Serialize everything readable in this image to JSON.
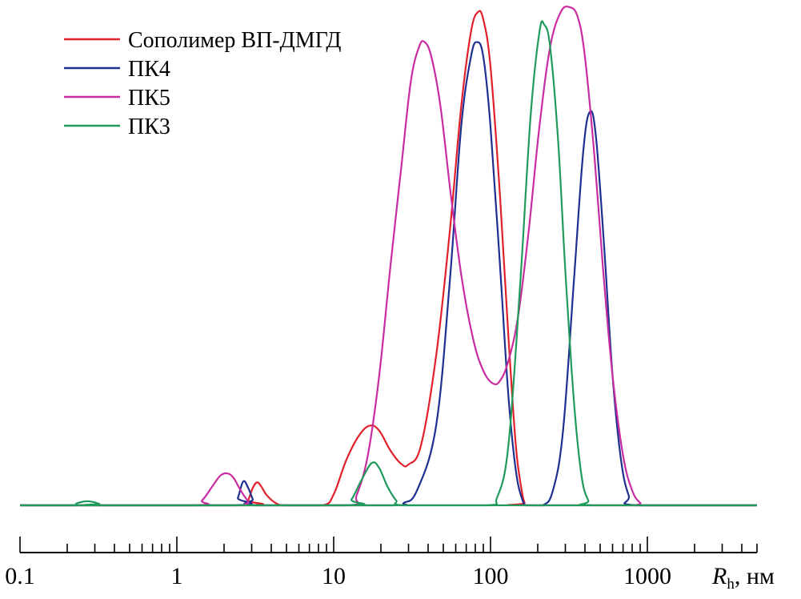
{
  "chart_data": {
    "type": "line",
    "title": "",
    "xlabel": {
      "symbol": "R",
      "subscript": "h",
      "unit": ", нм"
    },
    "ylabel": "",
    "x_scale": "log",
    "xlim": [
      0.1,
      5000
    ],
    "ylim": [
      0,
      1.0
    ],
    "tick_labels": [
      "0.1",
      "1",
      "10",
      "100",
      "1000"
    ],
    "tick_values": [
      0.1,
      1,
      10,
      100,
      1000
    ],
    "grid": false,
    "legend_position": "top-left",
    "series": [
      {
        "name": "Сополимер ВП-ДМГД",
        "color": "#e0202a",
        "points": [
          [
            0.1,
            0
          ],
          [
            2.7,
            0
          ],
          [
            2.85,
            0.01
          ],
          [
            3.05,
            0.035
          ],
          [
            3.25,
            0.046
          ],
          [
            3.45,
            0.038
          ],
          [
            3.75,
            0.02
          ],
          [
            4.3,
            0.004
          ],
          [
            5,
            0
          ],
          [
            8.5,
            0
          ],
          [
            10,
            0.022
          ],
          [
            12,
            0.09
          ],
          [
            14.5,
            0.14
          ],
          [
            17,
            0.16
          ],
          [
            19.5,
            0.15
          ],
          [
            23,
            0.11
          ],
          [
            27,
            0.083
          ],
          [
            30,
            0.082
          ],
          [
            36,
            0.12
          ],
          [
            45,
            0.3
          ],
          [
            55,
            0.55
          ],
          [
            65,
            0.8
          ],
          [
            75,
            0.95
          ],
          [
            83,
            0.99
          ],
          [
            90,
            0.975
          ],
          [
            100,
            0.88
          ],
          [
            115,
            0.62
          ],
          [
            130,
            0.34
          ],
          [
            145,
            0.12
          ],
          [
            158,
            0.03
          ],
          [
            165,
            0.005
          ],
          [
            170,
            0
          ],
          [
            5000,
            0
          ]
        ]
      },
      {
        "name": "ПК4",
        "color": "#1f2f8f",
        "points": [
          [
            0.1,
            0
          ],
          [
            2.3,
            0
          ],
          [
            2.45,
            0.015
          ],
          [
            2.65,
            0.048
          ],
          [
            2.85,
            0.035
          ],
          [
            3.05,
            0.012
          ],
          [
            3.2,
            0
          ],
          [
            24,
            0
          ],
          [
            28,
            0.005
          ],
          [
            34,
            0.03
          ],
          [
            45,
            0.16
          ],
          [
            55,
            0.45
          ],
          [
            65,
            0.76
          ],
          [
            75,
            0.9
          ],
          [
            82,
            0.93
          ],
          [
            90,
            0.9
          ],
          [
            100,
            0.76
          ],
          [
            115,
            0.48
          ],
          [
            130,
            0.22
          ],
          [
            145,
            0.07
          ],
          [
            160,
            0.01
          ],
          [
            170,
            0
          ],
          [
            215,
            0
          ],
          [
            250,
            0.03
          ],
          [
            290,
            0.15
          ],
          [
            340,
            0.45
          ],
          [
            390,
            0.71
          ],
          [
            430,
            0.79
          ],
          [
            470,
            0.74
          ],
          [
            530,
            0.52
          ],
          [
            600,
            0.26
          ],
          [
            680,
            0.09
          ],
          [
            760,
            0.02
          ],
          [
            850,
            0
          ],
          [
            5000,
            0
          ]
        ]
      },
      {
        "name": "ПК5",
        "color": "#c82ca0",
        "points": [
          [
            0.1,
            0
          ],
          [
            1.25,
            0
          ],
          [
            1.45,
            0.01
          ],
          [
            1.7,
            0.04
          ],
          [
            1.9,
            0.06
          ],
          [
            2.1,
            0.064
          ],
          [
            2.3,
            0.055
          ],
          [
            2.55,
            0.03
          ],
          [
            2.85,
            0.008
          ],
          [
            3.1,
            0
          ],
          [
            12.5,
            0
          ],
          [
            14,
            0.02
          ],
          [
            16.5,
            0.1
          ],
          [
            19.5,
            0.26
          ],
          [
            23,
            0.48
          ],
          [
            27,
            0.68
          ],
          [
            31,
            0.85
          ],
          [
            35,
            0.92
          ],
          [
            38,
            0.93
          ],
          [
            42,
            0.9
          ],
          [
            48,
            0.8
          ],
          [
            56,
            0.62
          ],
          [
            66,
            0.45
          ],
          [
            78,
            0.33
          ],
          [
            90,
            0.27
          ],
          [
            103,
            0.245
          ],
          [
            115,
            0.25
          ],
          [
            130,
            0.29
          ],
          [
            150,
            0.38
          ],
          [
            175,
            0.55
          ],
          [
            205,
            0.76
          ],
          [
            240,
            0.92
          ],
          [
            280,
            0.99
          ],
          [
            320,
            1.0
          ],
          [
            360,
            0.98
          ],
          [
            400,
            0.9
          ],
          [
            460,
            0.7
          ],
          [
            520,
            0.48
          ],
          [
            600,
            0.26
          ],
          [
            700,
            0.1
          ],
          [
            800,
            0.03
          ],
          [
            900,
            0.005
          ],
          [
            1000,
            0
          ],
          [
            5000,
            0
          ]
        ]
      },
      {
        "name": "ПК3",
        "color": "#1f9a5a",
        "points": [
          [
            0.1,
            0
          ],
          [
            0.21,
            0
          ],
          [
            0.23,
            0.004
          ],
          [
            0.26,
            0.008
          ],
          [
            0.29,
            0.007
          ],
          [
            0.32,
            0.003
          ],
          [
            0.35,
            0
          ],
          [
            11.5,
            0
          ],
          [
            13,
            0.012
          ],
          [
            15,
            0.05
          ],
          [
            17.5,
            0.085
          ],
          [
            19.5,
            0.075
          ],
          [
            22,
            0.038
          ],
          [
            25,
            0.01
          ],
          [
            28,
            0
          ],
          [
            95,
            0
          ],
          [
            110,
            0.015
          ],
          [
            130,
            0.12
          ],
          [
            155,
            0.45
          ],
          [
            180,
            0.78
          ],
          [
            205,
            0.95
          ],
          [
            220,
            0.965
          ],
          [
            240,
            0.92
          ],
          [
            270,
            0.73
          ],
          [
            300,
            0.47
          ],
          [
            340,
            0.21
          ],
          [
            380,
            0.06
          ],
          [
            420,
            0.01
          ],
          [
            460,
            0
          ],
          [
            5000,
            0
          ]
        ]
      }
    ]
  }
}
